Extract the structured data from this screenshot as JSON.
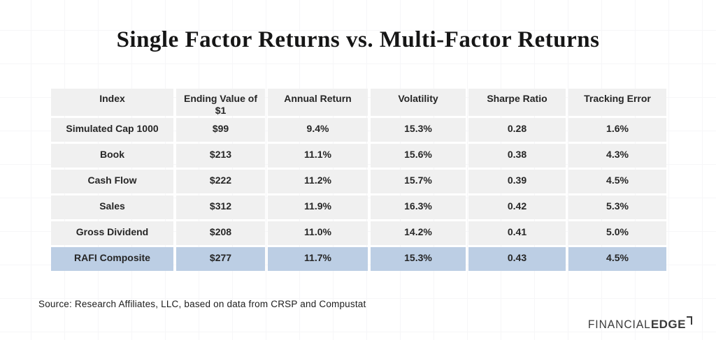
{
  "chart_data": {
    "type": "table",
    "title": "Single Factor Returns vs. Multi-Factor Returns",
    "columns": [
      "Index",
      "Ending Value of $1",
      "Annual Return",
      "Volatility",
      "Sharpe Ratio",
      "Tracking Error"
    ],
    "rows": [
      [
        "Simulated Cap 1000",
        "$99",
        "9.4%",
        "15.3%",
        "0.28",
        "1.6%"
      ],
      [
        "Book",
        "$213",
        "11.1%",
        "15.6%",
        "0.38",
        "4.3%"
      ],
      [
        "Cash Flow",
        "$222",
        "11.2%",
        "15.7%",
        "0.39",
        "4.5%"
      ],
      [
        "Sales",
        "$312",
        "11.9%",
        "16.3%",
        "0.42",
        "5.3%"
      ],
      [
        "Gross Dividend",
        "$208",
        "11.0%",
        "14.2%",
        "0.41",
        "5.0%"
      ],
      [
        "RAFI Composite",
        "$277",
        "11.7%",
        "15.3%",
        "0.43",
        "4.5%"
      ]
    ],
    "highlighted_row": "RAFI Composite",
    "legend_position": "none",
    "grid": "faint background grid"
  },
  "source_note": "Source: Research Affiliates, LLC, based on data from CRSP and Compustat",
  "logo": {
    "primary": "FINANCIAL",
    "secondary": "EDGE"
  },
  "colors": {
    "highlight_row": "#bccee4",
    "cell_bg": "#f0f0f0",
    "text": "#262626"
  }
}
